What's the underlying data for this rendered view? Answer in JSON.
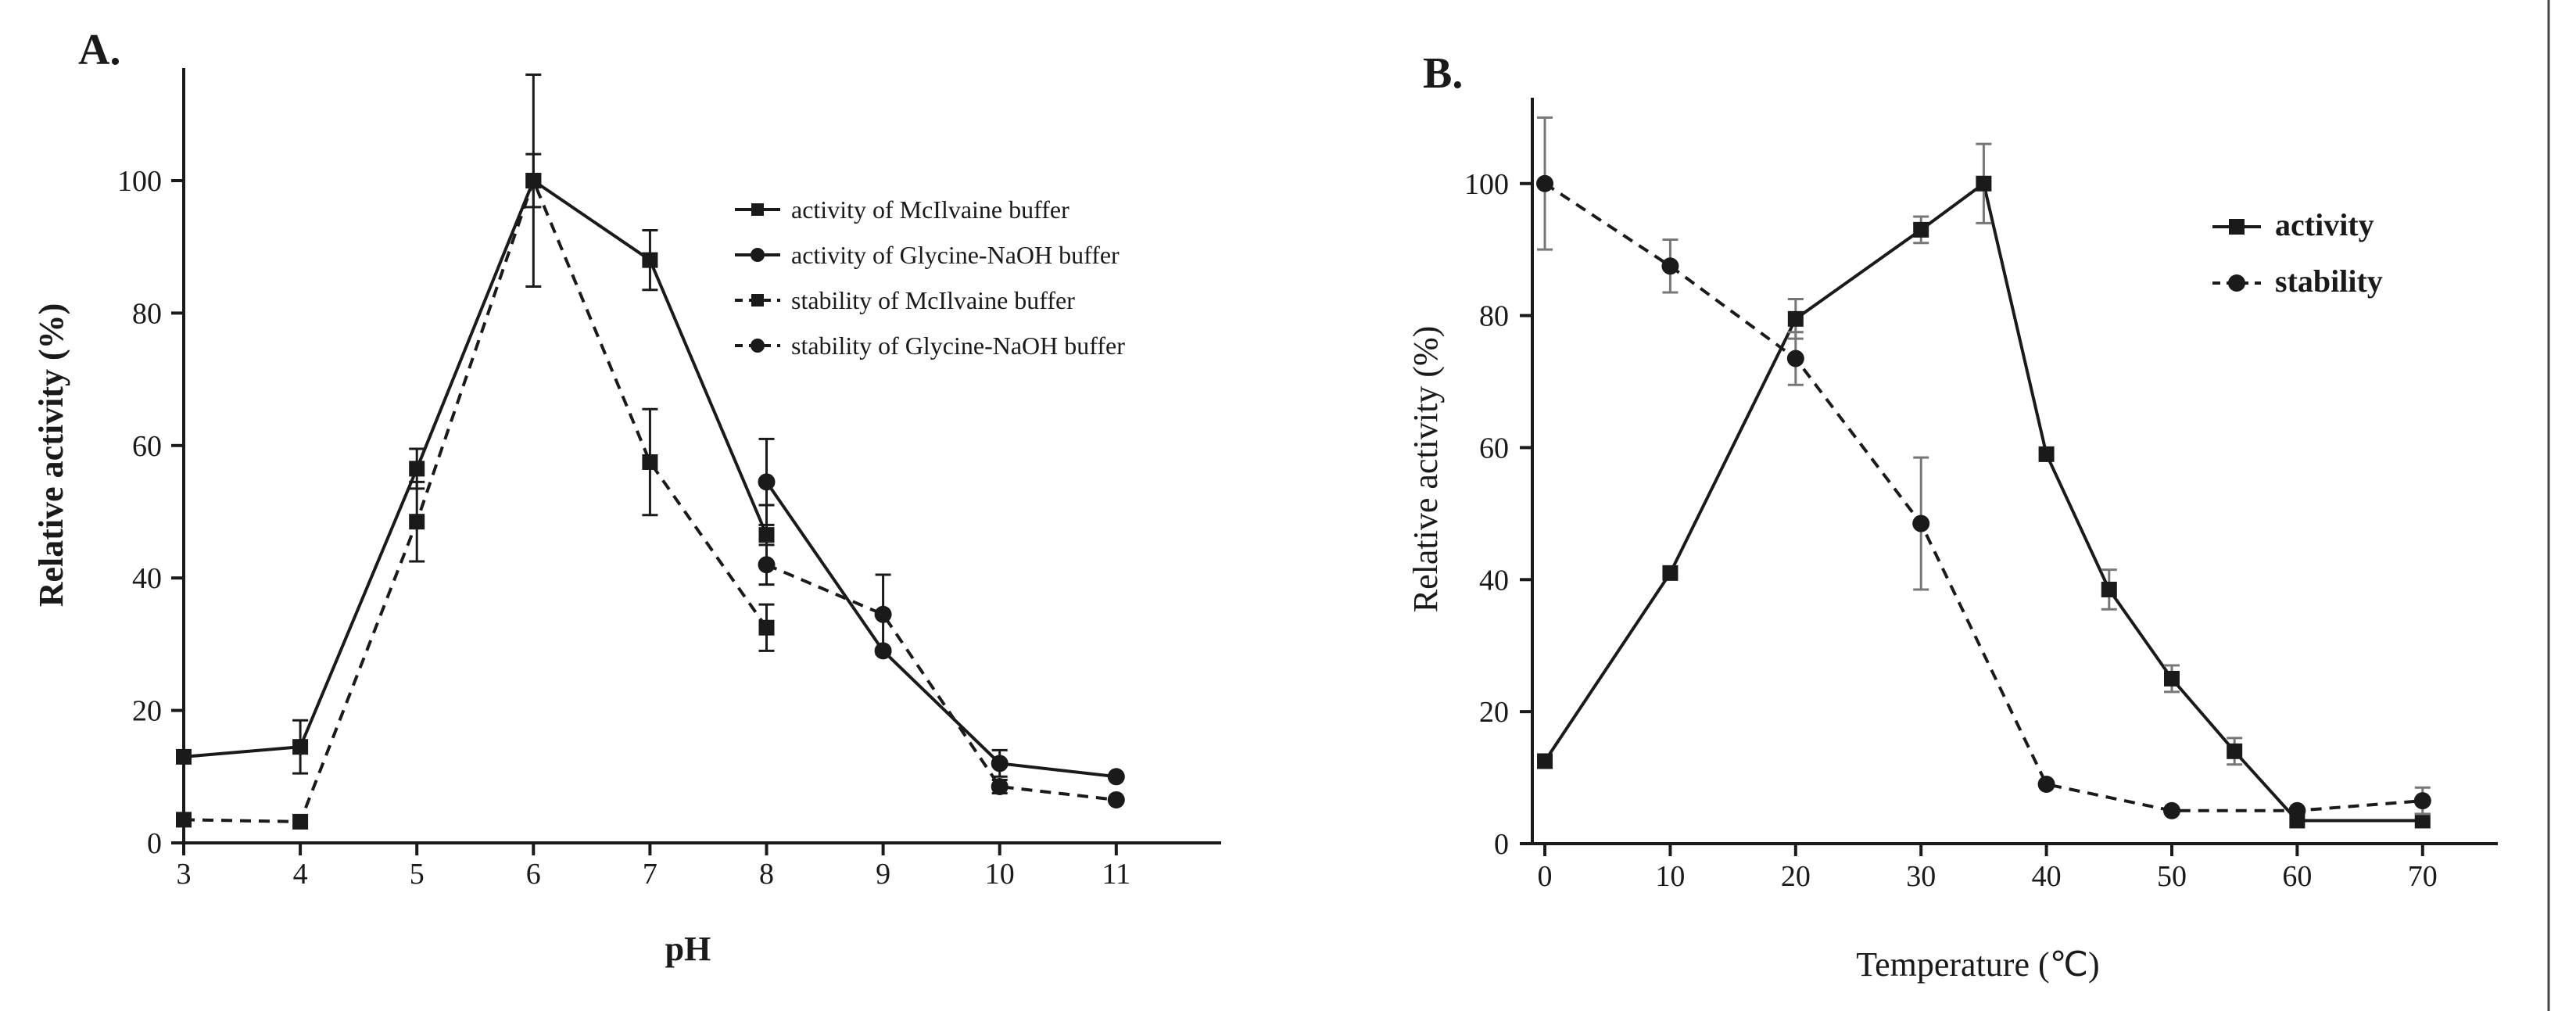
{
  "chart_data": [
    {
      "panel": "A.",
      "type": "line",
      "xlabel": "pH",
      "ylabel": "Relative activity (%)",
      "x": [
        3,
        4,
        5,
        6,
        7,
        8,
        9,
        10,
        11
      ],
      "xlim": [
        3,
        11.9
      ],
      "ylim": [
        0,
        117
      ],
      "xticks": [
        "3",
        "4",
        "5",
        "6",
        "7",
        "8",
        "9",
        "10",
        "11"
      ],
      "yticks": [
        "0",
        "20",
        "40",
        "60",
        "80",
        "100"
      ],
      "legend_position": "top-right",
      "series": [
        {
          "name": "activity of McIlvaine buffer",
          "marker": "square",
          "dashed": false,
          "x": [
            3,
            4,
            5,
            6,
            7,
            8
          ],
          "values": [
            13,
            14.5,
            56.5,
            100,
            88,
            46.5
          ],
          "errors": [
            0,
            4,
            3,
            16,
            4.5,
            4.5
          ],
          "err_color": "black"
        },
        {
          "name": "activity of Glycine-NaOH buffer",
          "marker": "circle",
          "dashed": false,
          "x": [
            8,
            9,
            10,
            11
          ],
          "values": [
            54.5,
            29,
            12,
            10
          ],
          "errors": [
            6.5,
            0,
            2,
            0
          ],
          "err_color": "black"
        },
        {
          "name": "stability of McIlvaine buffer",
          "marker": "square",
          "dashed": true,
          "x": [
            3,
            4,
            5,
            6,
            7,
            8
          ],
          "values": [
            3.5,
            3.2,
            48.5,
            100,
            57.5,
            32.5
          ],
          "errors": [
            0,
            0,
            6,
            4,
            8,
            3.5
          ],
          "err_color": "black"
        },
        {
          "name": "stability of Glycine-NaOH buffer",
          "marker": "circle",
          "dashed": true,
          "x": [
            8,
            9,
            10,
            11
          ],
          "values": [
            42,
            34.5,
            8.5,
            6.5
          ],
          "errors": [
            3,
            6,
            1,
            0
          ],
          "err_color": "black"
        }
      ]
    },
    {
      "panel": "B.",
      "type": "line",
      "xlabel": "Temperature (℃)",
      "ylabel": "Relative activity (%)",
      "x": [
        0,
        10,
        20,
        30,
        35,
        40,
        45,
        50,
        55,
        60,
        70
      ],
      "xlim": [
        -1,
        76
      ],
      "ylim": [
        0,
        113
      ],
      "xticks": [
        "0",
        "10",
        "20",
        "30",
        "40",
        "50",
        "60",
        "70"
      ],
      "yticks": [
        "0",
        "20",
        "40",
        "60",
        "80",
        "100"
      ],
      "legend_position": "top-right",
      "series": [
        {
          "name": "activity",
          "marker": "square",
          "dashed": false,
          "x": [
            0,
            10,
            20,
            30,
            35,
            40,
            45,
            50,
            55,
            60,
            70
          ],
          "values": [
            12.5,
            41,
            79.5,
            93,
            100,
            59,
            38.5,
            25,
            14,
            3.5,
            3.5
          ],
          "errors": [
            0,
            0,
            3,
            2,
            6,
            0,
            3,
            2,
            2,
            0,
            0
          ],
          "err_color": "grey"
        },
        {
          "name": "stability",
          "marker": "circle",
          "dashed": true,
          "x": [
            0,
            10,
            20,
            30,
            40,
            50,
            60,
            70
          ],
          "values": [
            100,
            87.5,
            73.5,
            48.5,
            9,
            5,
            5,
            6.5
          ],
          "errors": [
            10,
            4,
            4,
            10,
            0,
            0,
            0,
            2
          ],
          "err_color": "grey"
        }
      ]
    }
  ]
}
